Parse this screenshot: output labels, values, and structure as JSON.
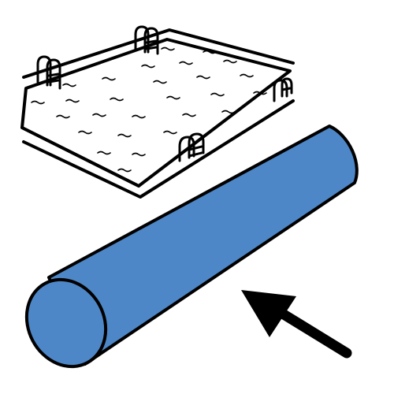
{
  "illustration": {
    "subject": "pool-noodle",
    "context": "swimming-pool",
    "pointer": "arrow-pointing-at-pool-noodle"
  },
  "colors": {
    "background": "#ffffff",
    "outline": "#000000",
    "noodle_fill": "#4d87c7",
    "pool_fill": "#ffffff"
  },
  "icons": {
    "pool": "swimming-pool-icon",
    "ladder": "pool-ladder-icon",
    "noodle": "pool-noodle-icon",
    "arrow": "arrow-icon"
  }
}
